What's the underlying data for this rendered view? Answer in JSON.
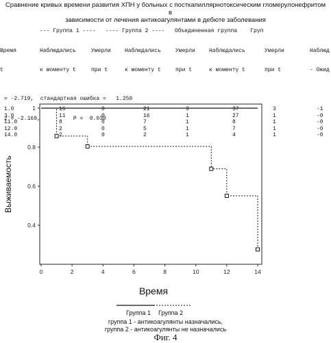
{
  "title": {
    "line1": "Сравнение кривых времени развития ХПН у больных с посткапиллярнотоксическим гломерулонефритом",
    "line1_suffix": "в",
    "line2": "зависимости от лечения антикоагулянтами в дебюте заболевания"
  },
  "table": {
    "group_header": "--- Группа 1 ----   ---- Группа 2 ----   Объединенная группа    Груп",
    "columns": [
      "Время",
      "Наблюдались к моменту t",
      "Умерли при t",
      "Наблюдались к моменту t",
      "Умерли при t",
      "Наблюдались к моменту t",
      "Умерли при t",
      "Наблюд Ожид"
    ],
    "header_line1": [
      "Время",
      "Наблюдались",
      "Умерли",
      "Наблюдались",
      "Умерли",
      "Наблюдались",
      "Умерли",
      "Наблюд"
    ],
    "header_line2": [
      "t",
      "к моменту t",
      "при t",
      "к моменту t",
      "при t",
      "к моменту t",
      "при t",
      "- Ожид"
    ],
    "rows": [
      [
        "1.0",
        "16",
        "0",
        "21",
        "3",
        "37",
        "3",
        "-1"
      ],
      [
        "3.0",
        "11",
        "0",
        "16",
        "1",
        "27",
        "1",
        "-0"
      ],
      [
        "11.0",
        "8",
        "0",
        "7",
        "1",
        "8",
        "1",
        "-0"
      ],
      [
        "12.0",
        "2",
        "0",
        "5",
        "1",
        "7",
        "1",
        "-0"
      ],
      [
        "14.0",
        "2",
        "0",
        "2",
        "1",
        "4",
        "1",
        "-0"
      ]
    ]
  },
  "stats": {
    "line1": "= -2.719,  стандартная ошибка =   1.250",
    "line2": "z = -2.169,          P =  0.030"
  },
  "chart_data": {
    "type": "line",
    "title": "",
    "xlabel": "Время",
    "ylabel": "Выживаемость",
    "xlim": [
      0,
      14
    ],
    "ylim": [
      0.2,
      1.0
    ],
    "x_ticks": [
      0,
      2,
      4,
      6,
      8,
      10,
      12,
      14
    ],
    "y_ticks": [
      0.4,
      0.6,
      0.8,
      1.0
    ],
    "y_tick_labels": [
      "0.4",
      "0.6",
      "0.8",
      "1"
    ],
    "series": [
      {
        "name": "Группа 1",
        "style": "solid",
        "points": [
          [
            0,
            1.0
          ],
          [
            14,
            1.0
          ]
        ],
        "markers": []
      },
      {
        "name": "Группа 2",
        "style": "dashed",
        "points": [
          [
            0,
            1.0
          ],
          [
            1,
            1.0
          ],
          [
            1,
            0.857
          ],
          [
            3,
            0.857
          ],
          [
            3,
            0.804
          ],
          [
            11,
            0.804
          ],
          [
            11,
            0.689
          ],
          [
            12,
            0.689
          ],
          [
            12,
            0.551
          ],
          [
            14,
            0.551
          ],
          [
            14,
            0.276
          ]
        ],
        "markers": [
          [
            1,
            0.857
          ],
          [
            3,
            0.804
          ],
          [
            11,
            0.689
          ],
          [
            12,
            0.551
          ],
          [
            14,
            0.276
          ]
        ]
      }
    ],
    "legend": [
      "Группа 1",
      "Группа 2"
    ],
    "legend_placement": "bottom"
  },
  "caption": {
    "line1": "группа 1 - антикоагулянты назначались,",
    "line2": "группа 2 - антикоагулянты не назначались"
  },
  "figure_label": "Фиг. 4"
}
